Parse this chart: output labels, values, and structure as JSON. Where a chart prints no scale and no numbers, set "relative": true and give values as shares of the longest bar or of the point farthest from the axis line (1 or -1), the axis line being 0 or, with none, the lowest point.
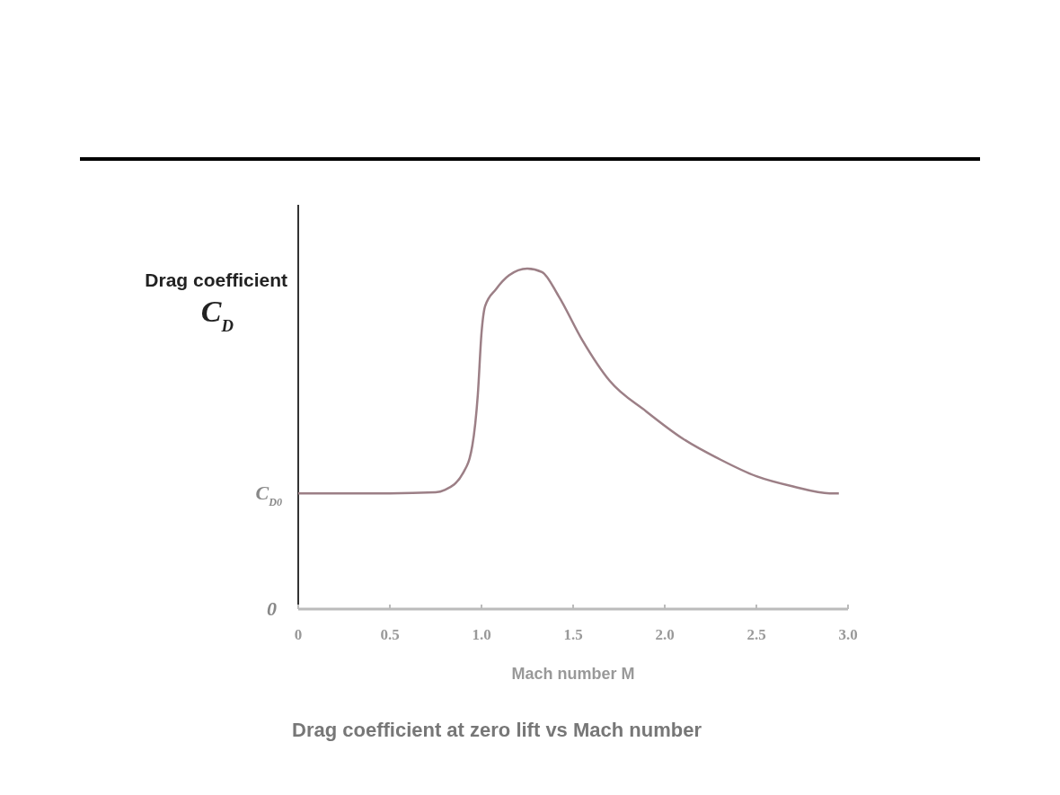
{
  "chart_data": {
    "type": "line",
    "title": "Drag coefficient at zero lift vs Mach number",
    "xlabel": "Mach number M",
    "ylabel": "Drag coefficient C$_{D}$",
    "relative": true,
    "x": [
      0,
      0.5,
      0.75,
      0.8,
      0.9,
      0.95,
      0.98,
      1.0,
      1.02,
      1.08,
      1.15,
      1.25,
      1.33,
      1.42,
      1.55,
      1.7,
      1.9,
      2.1,
      2.3,
      2.5,
      2.7,
      2.9,
      2.95
    ],
    "series": [
      {
        "color": "#9c7f86",
        "values": [
          0.34,
          0.34,
          0.343,
          0.35,
          0.4,
          0.48,
          0.63,
          0.81,
          0.89,
          0.94,
          0.98,
          1.0,
          0.99,
          0.92,
          0.79,
          0.67,
          0.58,
          0.5,
          0.44,
          0.39,
          0.36,
          0.34,
          0.34
        ]
      }
    ],
    "xlim": [
      0,
      3.0
    ],
    "xticks": [
      0,
      0.5,
      {
        "value": 1,
        "label": "1.0"
      },
      1.5,
      {
        "value": 2,
        "label": "2.0"
      },
      2.5,
      {
        "value": 3,
        "label": "3.0"
      }
    ],
    "annotations": [
      {
        "text": "C$_{D0}$",
        "x": 0,
        "y": 0.34
      },
      "0"
    ],
    "line_style": "solid"
  }
}
